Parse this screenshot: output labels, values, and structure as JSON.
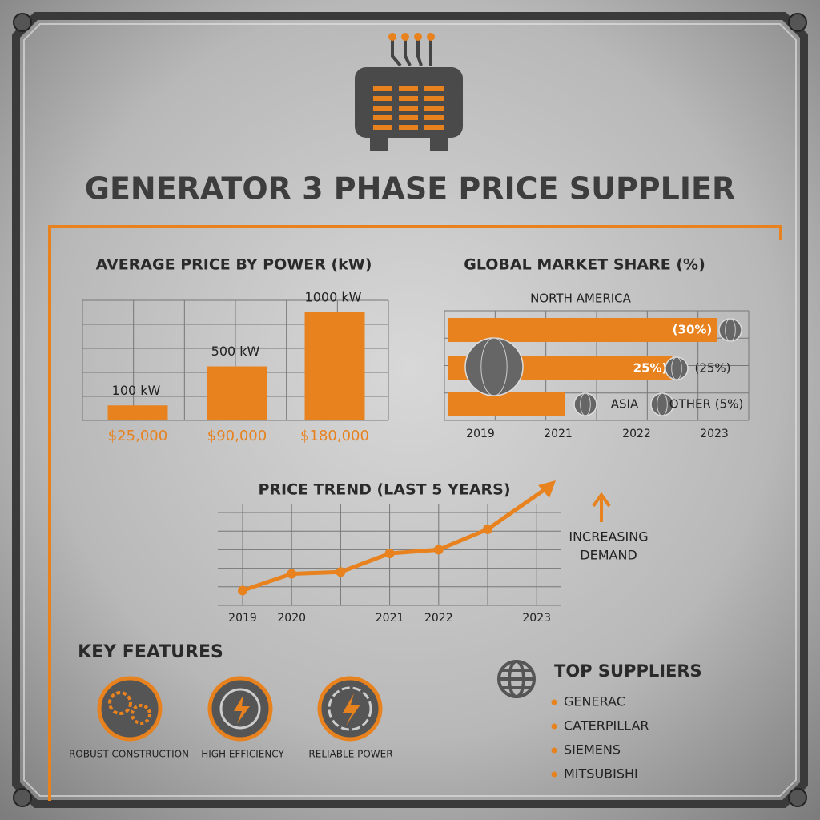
{
  "title": "GENERATOR 3 PHASE PRICE SUPPLIER",
  "chart_data": [
    {
      "type": "bar",
      "title": "AVERAGE PRICE BY POWER (kW)",
      "categories": [
        "100 kW",
        "500 kW",
        "1000 kW"
      ],
      "values": [
        25000,
        90000,
        180000
      ],
      "value_labels": [
        "$25,000",
        "$90,000",
        "$180,000"
      ],
      "color": "#e8821e",
      "ylim": [
        0,
        200000
      ],
      "grid": true
    },
    {
      "type": "hbar",
      "title": "GLOBAL MARKET SHARE (%)",
      "categories": [
        "NORTH AMERICA",
        null,
        "ASIA"
      ],
      "values": [
        30,
        25,
        13
      ],
      "value_labels": [
        "(30%)",
        "25%)",
        null
      ],
      "annotations": [
        "(25%)",
        "OTHER (5%)"
      ],
      "x_labels": [
        "2019",
        "2021",
        "2022",
        "2023"
      ],
      "xlim": [
        0,
        34
      ],
      "color": "#e8821e",
      "grid": true
    },
    {
      "type": "line",
      "title": "PRICE TREND (LAST 5 YEARS)",
      "categories": [
        "2019",
        "2020",
        null,
        "2021",
        "2022",
        null,
        "2023"
      ],
      "values": [
        0.8,
        1.7,
        1.8,
        2.8,
        3.0,
        4.1,
        null
      ],
      "ylim": [
        0,
        5
      ],
      "color": "#e8821e",
      "grid": true,
      "annotation": [
        "INCREASING",
        "DEMAND"
      ]
    }
  ],
  "key_features": {
    "title": "KEY FEATURES",
    "items": [
      "ROBUST CONSTRUCTION",
      "HIGH EFFICIENCY",
      "RELIABLE POWER"
    ]
  },
  "top_suppliers": {
    "title": "TOP SUPPLIERS",
    "items": [
      "GENERAC",
      "CATERPILLAR",
      "SIEMENS",
      "MITSUBISHI"
    ]
  }
}
